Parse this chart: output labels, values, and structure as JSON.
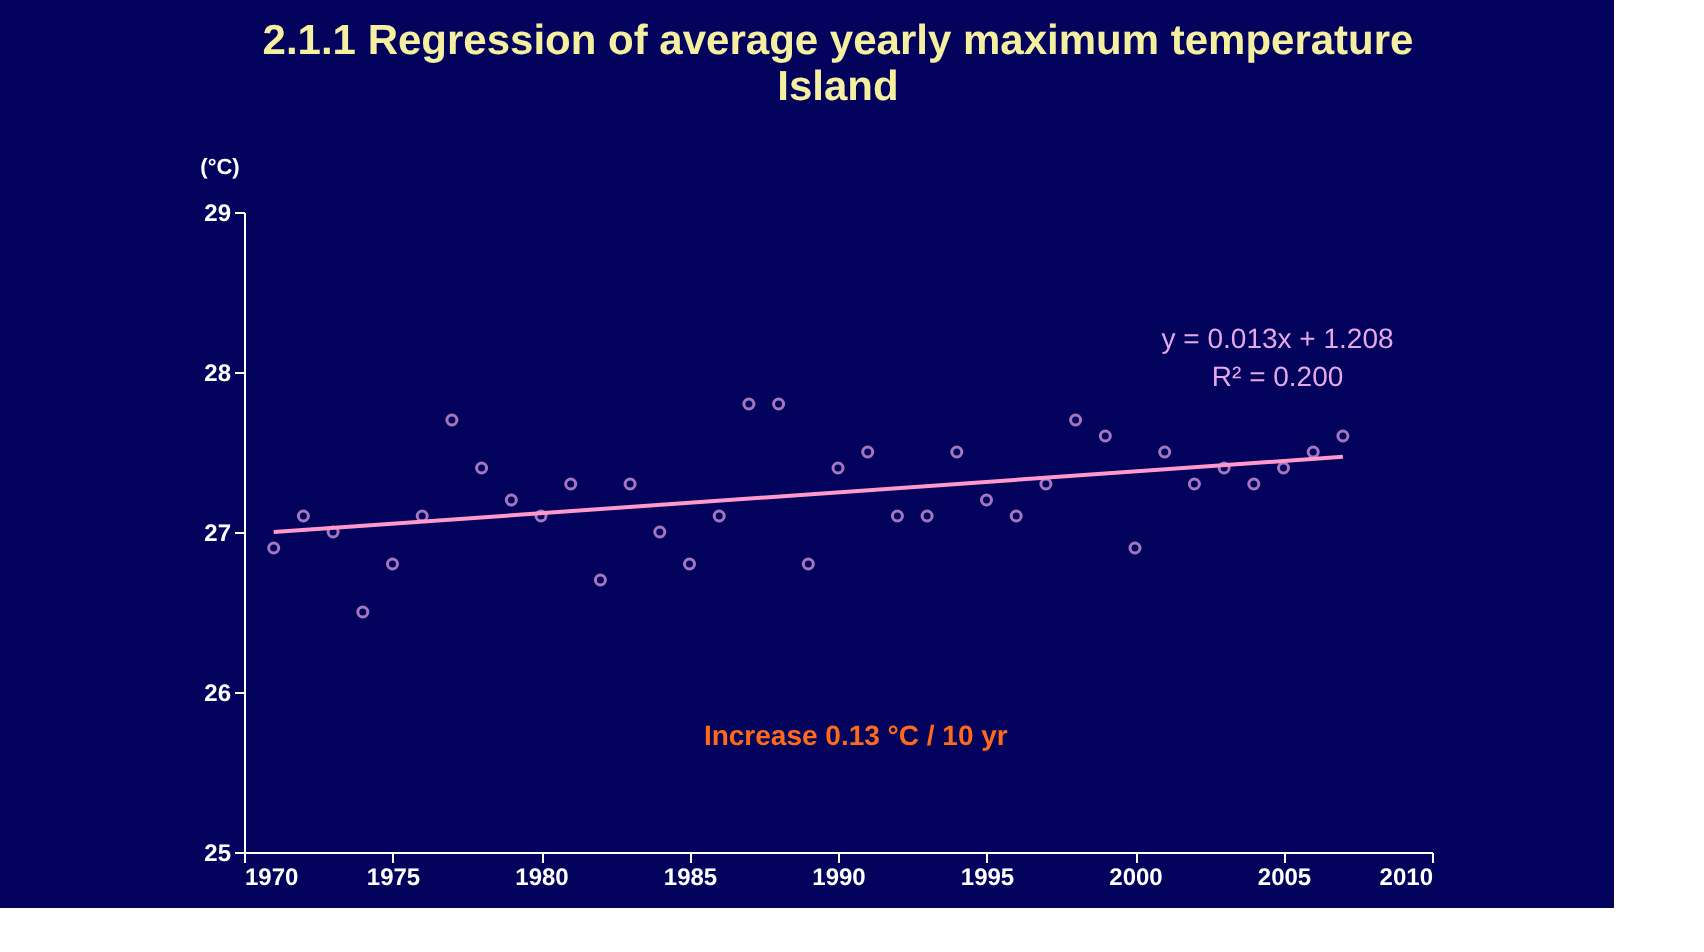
{
  "chart_data": {
    "type": "scatter",
    "title": [
      "2.1.1 Regression of average yearly maximum temperature",
      "Island"
    ],
    "ylabel": "(°C)",
    "x": [
      1971,
      1972,
      1973,
      1974,
      1975,
      1976,
      1977,
      1978,
      1979,
      1980,
      1981,
      1982,
      1983,
      1984,
      1985,
      1986,
      1987,
      1988,
      1989,
      1990,
      1991,
      1992,
      1993,
      1994,
      1995,
      1996,
      1997,
      1998,
      1999,
      2000,
      2001,
      2002,
      2003,
      2004,
      2005,
      2006,
      2007
    ],
    "series": [
      {
        "color": "#e6a8e6",
        "marker": "circle",
        "values": [
          26.9,
          27.1,
          27.0,
          26.5,
          26.8,
          27.1,
          27.7,
          27.4,
          27.2,
          27.1,
          27.3,
          26.7,
          27.3,
          27.0,
          26.8,
          27.1,
          27.8,
          27.8,
          26.8,
          27.4,
          27.5,
          27.1,
          27.1,
          27.5,
          27.2,
          27.1,
          27.3,
          27.7,
          27.6,
          26.9,
          27.5,
          27.3,
          27.4,
          27.3,
          27.4,
          27.5,
          27.6
        ]
      },
      {
        "type": "line",
        "color": "#ff99cc",
        "marker": "none",
        "x": [
          1971,
          2007
        ],
        "values": [
          27.0,
          27.47
        ]
      }
    ],
    "xlim": [
      1970,
      2010
    ],
    "xticks": [
      1970,
      1975,
      1980,
      1985,
      1990,
      1995,
      2000,
      2005,
      2010
    ],
    "ylim": [
      25,
      29
    ],
    "yticks": [
      25,
      26,
      27,
      28,
      29
    ],
    "grid": false,
    "annotations": [
      "y = 0.013x + 1.208",
      "R² = 0.200",
      "Increase 0.13 °C / 10 yr"
    ]
  }
}
